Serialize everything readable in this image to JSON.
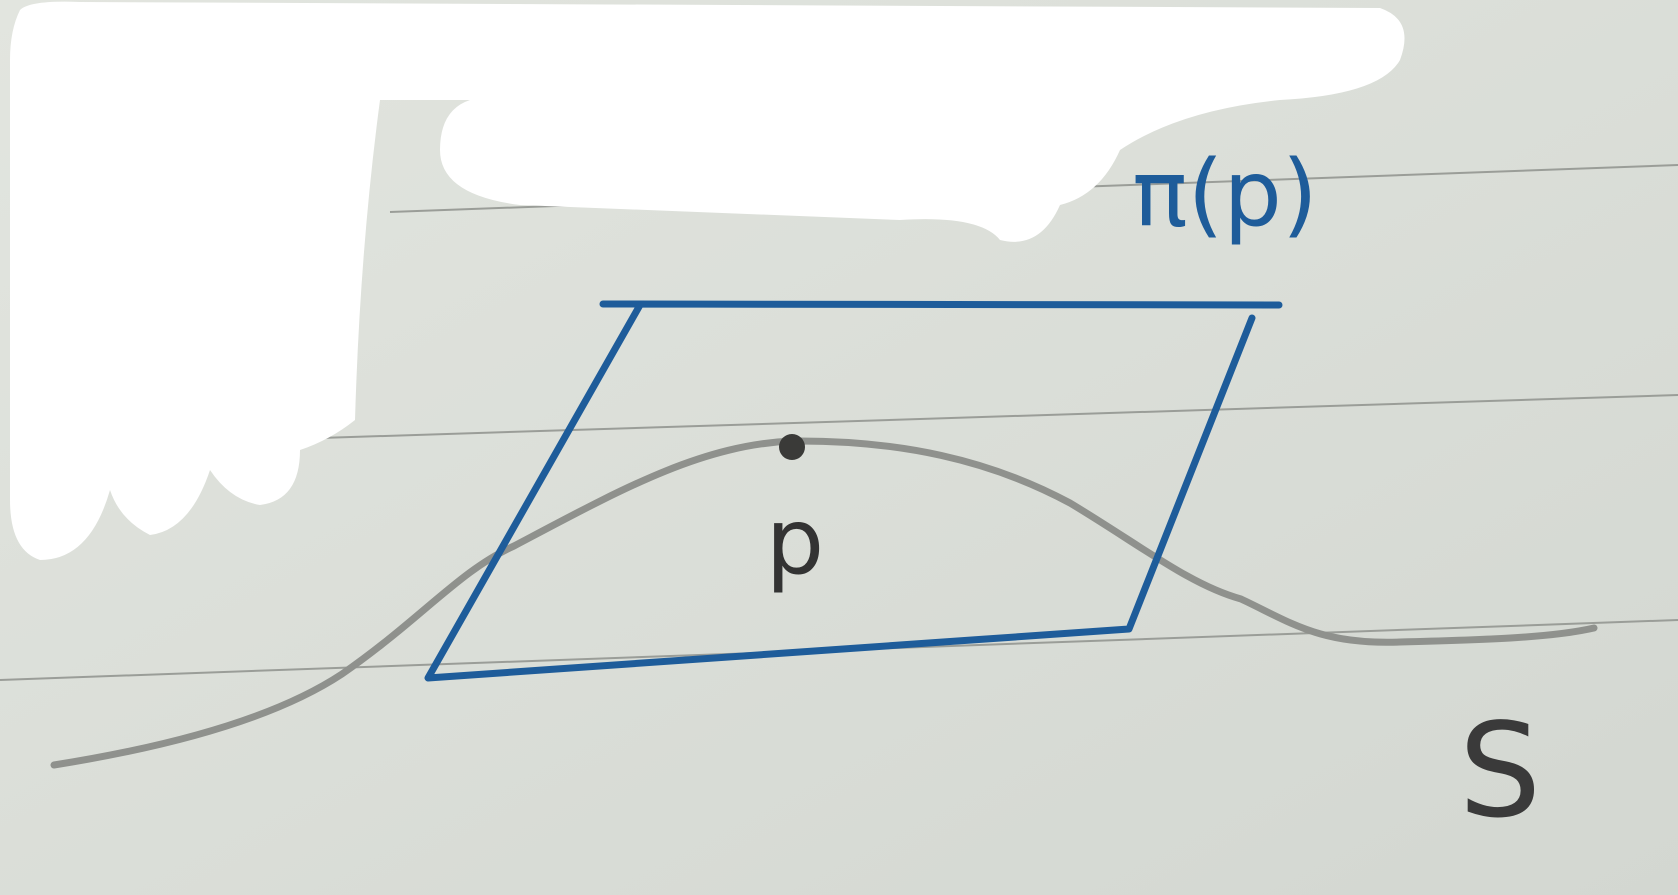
{
  "labels": {
    "plane": "π(p)",
    "point": "p",
    "surface": "S"
  }
}
